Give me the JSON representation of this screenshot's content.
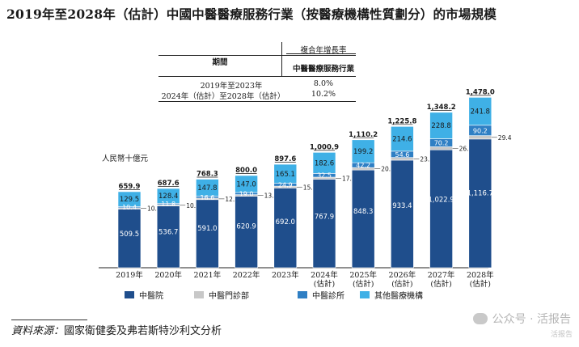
{
  "title": "2019年至2028年（估計）中國中醫醫療服務行業（按醫療機構性質劃分）的市場規模",
  "cagr_table": {
    "header_top": "複合年增長率",
    "header_period": "期間",
    "header_sector": "中醫醫療服務行業",
    "rows": [
      {
        "period": "2019年至2023年",
        "rate": "8.0%"
      },
      {
        "period": "2024年（估計）至2028年（估計）",
        "rate": "10.2%"
      }
    ]
  },
  "chart_data": {
    "type": "bar",
    "stacked": true,
    "ylabel": "人民幣十億元",
    "categories": [
      "2019年",
      "2020年",
      "2021年",
      "2022年",
      "2023年",
      "2024年\n(估計)",
      "2025年\n(估計)",
      "2026年\n(估計)",
      "2027年\n(估計)",
      "2028年\n(估計)"
    ],
    "totals": [
      "659.9",
      "687.6",
      "768.3",
      "800.0",
      "897.6",
      "1,000.9",
      "1,110.2",
      "1,225.8",
      "1,348.2",
      "1,478.0"
    ],
    "series": [
      {
        "name": "中醫院",
        "color": "#1f4e8c",
        "values": [
          509.5,
          536.7,
          591.0,
          620.9,
          692.0,
          767.9,
          848.3,
          933.4,
          1022.9,
          1116.7
        ],
        "labels": [
          "509.5",
          "536.7",
          "591.0",
          "620.9",
          "692.0",
          "767.9",
          "848.3",
          "933.4",
          "1,022.9",
          "1,116.7"
        ]
      },
      {
        "name": "中醫門診部",
        "color": "#c8c8c8",
        "values": [
          10.5,
          10.7,
          12.9,
          13.1,
          15.6,
          17.9,
          20.5,
          23.2,
          26.2,
          29.4
        ],
        "labels": [
          "10.5",
          "10.7",
          "12.9",
          "13.1",
          "15.6",
          "17.9",
          "20.5",
          "23.2",
          "26.2",
          "29.4"
        ]
      },
      {
        "name": "中醫診所",
        "color": "#2f7fc4",
        "values": [
          10.4,
          11.8,
          16.6,
          19.0,
          24.9,
          32.5,
          42.2,
          54.6,
          70.2,
          90.2
        ],
        "labels": [
          "10.4",
          "11.8",
          "16.6",
          "19.0",
          "24.9",
          "32.5",
          "42.2",
          "54.6",
          "70.2",
          "90.2"
        ]
      },
      {
        "name": "其他醫療機構",
        "color": "#3fb0e6",
        "values": [
          129.5,
          128.4,
          147.8,
          147.0,
          165.1,
          182.6,
          199.2,
          214.6,
          228.8,
          241.8
        ],
        "labels": [
          "129.5",
          "128.4",
          "147.8",
          "147.0",
          "165.1",
          "182.6",
          "199.2",
          "214.6",
          "228.8",
          "241.8"
        ]
      }
    ]
  },
  "source": {
    "key": "資料來源：",
    "text": "國家衛健委及弗若斯特沙利文分析"
  },
  "watermark": {
    "main": "公众号 · 活报告",
    "small": "活报告"
  }
}
